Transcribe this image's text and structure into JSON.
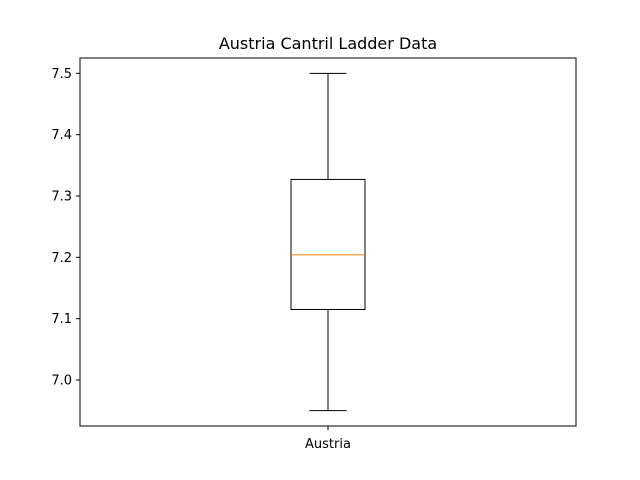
{
  "chart_data": {
    "type": "box",
    "title": "Austria Cantril Ladder Data",
    "xlabel": "",
    "ylabel": "",
    "categories": [
      "Austria"
    ],
    "boxes": [
      {
        "name": "Austria",
        "whisker_low": 6.95,
        "q1": 7.115,
        "median": 7.204,
        "q3": 7.327,
        "whisker_high": 7.5
      }
    ],
    "ylim": [
      6.925,
      7.525
    ],
    "yticks": [
      7.0,
      7.1,
      7.2,
      7.3,
      7.4,
      7.5
    ],
    "ytick_labels": [
      "7.0",
      "7.1",
      "7.2",
      "7.3",
      "7.4",
      "7.5"
    ],
    "grid": false,
    "colors": {
      "box": "#000000",
      "median": "#ff7f0e",
      "axes": "#000000",
      "background": "#ffffff"
    }
  }
}
